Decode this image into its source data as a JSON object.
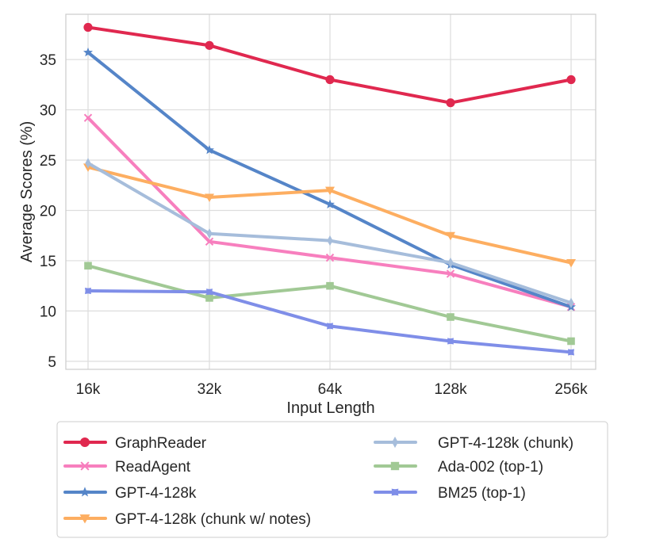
{
  "chart_data": {
    "type": "line",
    "title": "",
    "xlabel": "Input Length",
    "ylabel": "Average Scores (%)",
    "categories": [
      "16k",
      "32k",
      "64k",
      "128k",
      "256k"
    ],
    "yticks": [
      5,
      10,
      15,
      20,
      25,
      30,
      35
    ],
    "ylim": [
      4.2,
      39.5
    ],
    "grid": true,
    "legend_position": "bottom",
    "series": [
      {
        "name": "GraphReader",
        "color": "#e0284f",
        "marker": "circle",
        "values": [
          38.2,
          36.4,
          33.0,
          30.7,
          33.0
        ]
      },
      {
        "name": "ReadAgent",
        "color": "#f77fbe",
        "marker": "x",
        "values": [
          29.2,
          16.9,
          15.3,
          13.7,
          10.4
        ]
      },
      {
        "name": "GPT-4-128k",
        "color": "#5585c8",
        "marker": "star",
        "values": [
          35.7,
          26.0,
          20.6,
          14.6,
          10.4
        ]
      },
      {
        "name": "GPT-4-128k (chunk w/ notes)",
        "color": "#fdae61",
        "marker": "triangle-down",
        "values": [
          24.3,
          21.3,
          22.0,
          17.5,
          14.8
        ]
      },
      {
        "name": "GPT-4-128k (chunk)",
        "color": "#a6bddb",
        "marker": "thin-diamond",
        "values": [
          24.7,
          17.7,
          17.0,
          14.8,
          10.8
        ]
      },
      {
        "name": "Ada-002 (top-1)",
        "color": "#a1c995",
        "marker": "square",
        "values": [
          14.5,
          11.3,
          12.5,
          9.4,
          7.0
        ]
      },
      {
        "name": "BM25 (top-1)",
        "color": "#7f8ee8",
        "marker": "pentagon-x",
        "values": [
          12.0,
          11.9,
          8.5,
          7.0,
          5.9
        ]
      }
    ]
  }
}
